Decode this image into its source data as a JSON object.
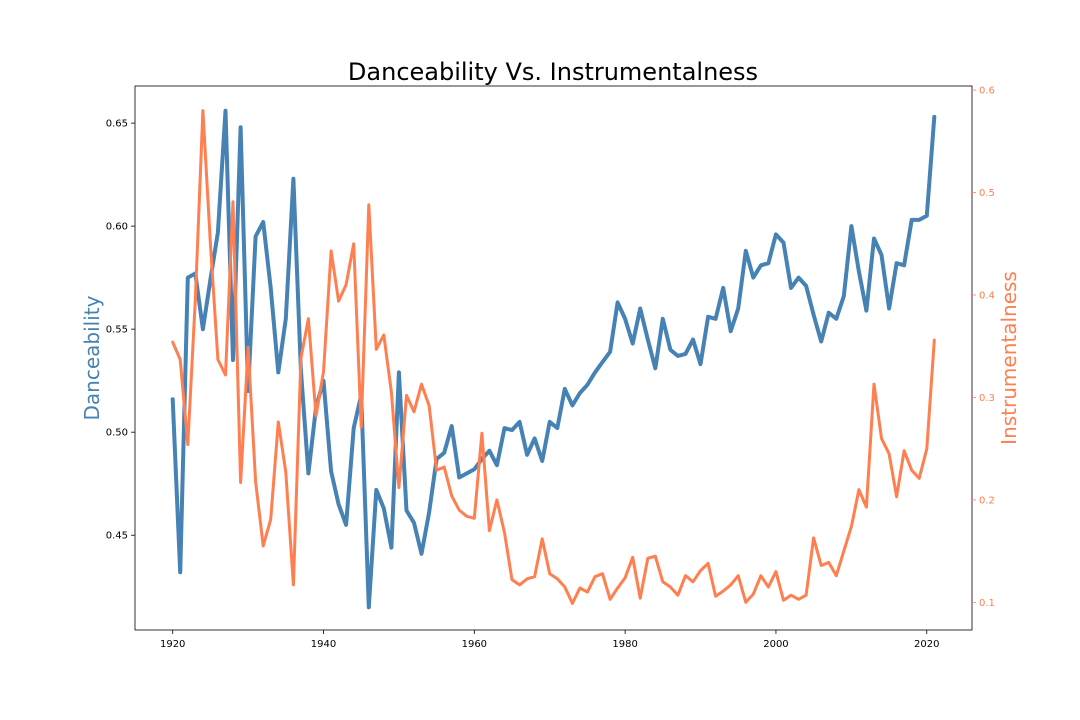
{
  "chart_data": {
    "type": "line",
    "title": "Danceability Vs. Instrumentalness",
    "xlabel": "",
    "xlim": [
      1915,
      2026
    ],
    "x_ticks": [
      1920,
      1940,
      1960,
      1980,
      2000,
      2020
    ],
    "grid": false,
    "left_axis": {
      "label": "Danceability",
      "color": "#4682b4",
      "ylim": [
        0.404,
        0.668
      ],
      "ticks": [
        0.45,
        0.5,
        0.55,
        0.6,
        0.65
      ]
    },
    "right_axis": {
      "label": "Instrumentalness",
      "color": "#ff7f50",
      "ylim": [
        0.073,
        0.604
      ],
      "ticks": [
        0.1,
        0.2,
        0.3,
        0.4,
        0.5,
        0.6
      ]
    },
    "x": [
      1920,
      1921,
      1922,
      1923,
      1924,
      1925,
      1926,
      1927,
      1928,
      1929,
      1930,
      1931,
      1932,
      1933,
      1934,
      1935,
      1936,
      1937,
      1938,
      1939,
      1940,
      1941,
      1942,
      1943,
      1944,
      1945,
      1946,
      1947,
      1948,
      1949,
      1950,
      1951,
      1952,
      1953,
      1954,
      1955,
      1956,
      1957,
      1958,
      1959,
      1960,
      1961,
      1962,
      1963,
      1964,
      1965,
      1966,
      1967,
      1968,
      1969,
      1970,
      1971,
      1972,
      1973,
      1974,
      1975,
      1976,
      1977,
      1978,
      1979,
      1980,
      1981,
      1982,
      1983,
      1984,
      1985,
      1986,
      1987,
      1988,
      1989,
      1990,
      1991,
      1992,
      1993,
      1994,
      1995,
      1996,
      1997,
      1998,
      1999,
      2000,
      2001,
      2002,
      2003,
      2004,
      2005,
      2006,
      2007,
      2008,
      2009,
      2010,
      2011,
      2012,
      2013,
      2014,
      2015,
      2016,
      2017,
      2018,
      2019,
      2020,
      2021
    ],
    "series": [
      {
        "axis": "left",
        "color": "#4682b4",
        "values": [
          0.516,
          0.432,
          0.575,
          0.577,
          0.55,
          0.574,
          0.597,
          0.656,
          0.535,
          0.648,
          0.52,
          0.595,
          0.602,
          0.57,
          0.529,
          0.555,
          0.623,
          0.53,
          0.48,
          0.512,
          0.525,
          0.481,
          0.465,
          0.455,
          0.502,
          0.518,
          0.415,
          0.472,
          0.463,
          0.444,
          0.529,
          0.462,
          0.456,
          0.441,
          0.461,
          0.487,
          0.49,
          0.503,
          0.478,
          0.48,
          0.482,
          0.487,
          0.491,
          0.484,
          0.502,
          0.501,
          0.505,
          0.489,
          0.497,
          0.486,
          0.505,
          0.502,
          0.521,
          0.513,
          0.519,
          0.523,
          0.529,
          0.534,
          0.539,
          0.563,
          0.555,
          0.543,
          0.56,
          0.545,
          0.531,
          0.555,
          0.54,
          0.537,
          0.538,
          0.545,
          0.533,
          0.556,
          0.555,
          0.57,
          0.549,
          0.56,
          0.588,
          0.575,
          0.581,
          0.582,
          0.596,
          0.592,
          0.57,
          0.575,
          0.571,
          0.557,
          0.544,
          0.558,
          0.555,
          0.566,
          0.6,
          0.578,
          0.559,
          0.594,
          0.586,
          0.56,
          0.582,
          0.581,
          0.603,
          0.603,
          0.605,
          0.653
        ]
      },
      {
        "axis": "right",
        "color": "#ff7f50",
        "values": [
          0.354,
          0.337,
          0.254,
          0.395,
          0.58,
          0.45,
          0.337,
          0.322,
          0.491,
          0.217,
          0.349,
          0.218,
          0.155,
          0.181,
          0.276,
          0.227,
          0.117,
          0.338,
          0.377,
          0.282,
          0.325,
          0.443,
          0.394,
          0.41,
          0.45,
          0.271,
          0.488,
          0.347,
          0.361,
          0.305,
          0.212,
          0.302,
          0.286,
          0.313,
          0.292,
          0.229,
          0.232,
          0.204,
          0.19,
          0.184,
          0.182,
          0.265,
          0.17,
          0.2,
          0.168,
          0.122,
          0.117,
          0.123,
          0.125,
          0.162,
          0.128,
          0.123,
          0.115,
          0.099,
          0.114,
          0.11,
          0.125,
          0.128,
          0.103,
          0.114,
          0.124,
          0.144,
          0.104,
          0.143,
          0.145,
          0.12,
          0.115,
          0.107,
          0.126,
          0.12,
          0.131,
          0.138,
          0.106,
          0.111,
          0.117,
          0.126,
          0.1,
          0.108,
          0.126,
          0.115,
          0.13,
          0.102,
          0.107,
          0.103,
          0.107,
          0.163,
          0.136,
          0.139,
          0.126,
          0.15,
          0.174,
          0.21,
          0.193,
          0.313,
          0.26,
          0.245,
          0.203,
          0.248,
          0.229,
          0.221,
          0.25,
          0.356
        ]
      }
    ]
  }
}
